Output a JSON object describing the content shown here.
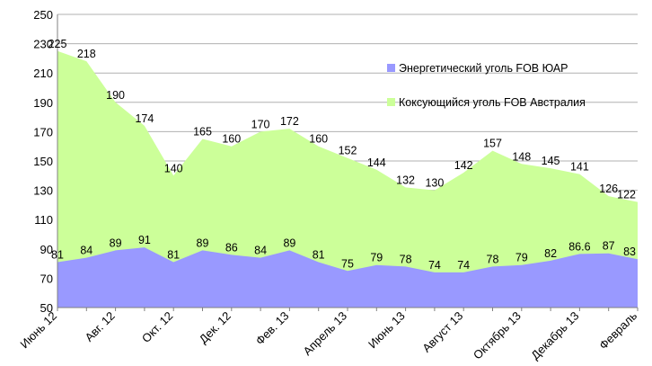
{
  "chart_data": {
    "type": "area",
    "title": "",
    "xlabel": "",
    "ylabel": "",
    "ylim": [
      50,
      250
    ],
    "yticks": [
      50,
      70,
      90,
      110,
      130,
      150,
      170,
      190,
      210,
      230,
      250
    ],
    "grid": true,
    "legend_position": "right",
    "x_tick_labels": [
      "Июнь 12",
      "Авг. 12",
      "Окт. 12",
      "Дек. 12",
      "Фев. 13",
      "Апрель 13",
      "Июнь 13",
      "Август 13",
      "Октябрь 13",
      "Декабрь 13",
      "Февраль"
    ],
    "series": [
      {
        "name": "Энергетический уголь FOB ЮАР",
        "color": "#9999ff",
        "values": [
          81,
          84,
          89,
          91,
          81,
          89,
          86,
          84,
          89,
          81,
          75,
          79,
          78,
          74,
          74,
          78,
          79,
          82,
          86.6,
          87,
          83
        ],
        "labels": [
          "81",
          "84",
          "89",
          "91",
          "81",
          "89",
          "86",
          "84",
          "89",
          "81",
          "75",
          "79",
          "78",
          "74",
          "74",
          "78",
          "79",
          "82",
          "86.6",
          "87",
          "83"
        ]
      },
      {
        "name": "Коксующийся уголь FOB Австралия",
        "color": "#ccff99",
        "values": [
          225,
          218,
          190,
          174,
          140,
          165,
          160,
          170,
          172,
          160,
          152,
          144,
          132,
          130,
          142,
          157,
          148,
          145,
          141,
          126,
          122
        ],
        "labels": [
          "225",
          "218",
          "190",
          "174",
          "140",
          "165",
          "160",
          "170",
          "172",
          "160",
          "152",
          "144",
          "132",
          "130",
          "142",
          "157",
          "148",
          "145",
          "141",
          "126",
          "122"
        ]
      }
    ]
  }
}
